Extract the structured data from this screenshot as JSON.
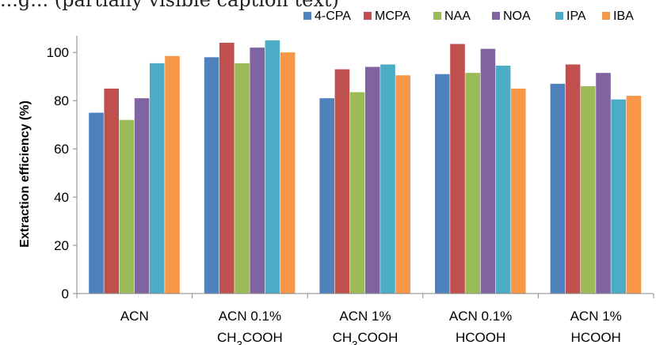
{
  "top_text": "...g... (partially visible caption text)",
  "chart_data": {
    "type": "bar",
    "ylabel": "Extraction efficiency (%)",
    "xlabel": "",
    "ylim": [
      0,
      105
    ],
    "yticks": [
      0,
      20,
      40,
      60,
      80,
      100
    ],
    "legend_position": "top-right",
    "grid": false,
    "categories": [
      [
        "ACN",
        ""
      ],
      [
        "ACN 0.1%",
        "CH3COOH"
      ],
      [
        "ACN 1%",
        "CH3COOH"
      ],
      [
        "ACN 0.1%",
        "HCOOH"
      ],
      [
        "ACN 1%",
        "HCOOH"
      ]
    ],
    "series": [
      {
        "name": "4-CPA",
        "color": "#4F81BD",
        "values": [
          75,
          98,
          81,
          91,
          87
        ]
      },
      {
        "name": "MCPA",
        "color": "#C0504D",
        "values": [
          85,
          104,
          93,
          103.5,
          95
        ]
      },
      {
        "name": "NAA",
        "color": "#9BBB59",
        "values": [
          72,
          95.5,
          83.5,
          91.5,
          86
        ]
      },
      {
        "name": "NOA",
        "color": "#8064A2",
        "values": [
          81,
          102,
          94,
          101.5,
          91.5
        ]
      },
      {
        "name": "IPA",
        "color": "#4BACC6",
        "values": [
          95.5,
          105,
          95,
          94.5,
          80.5
        ]
      },
      {
        "name": "IBA",
        "color": "#F79646",
        "values": [
          98.5,
          100,
          90.5,
          85,
          82
        ]
      }
    ]
  }
}
